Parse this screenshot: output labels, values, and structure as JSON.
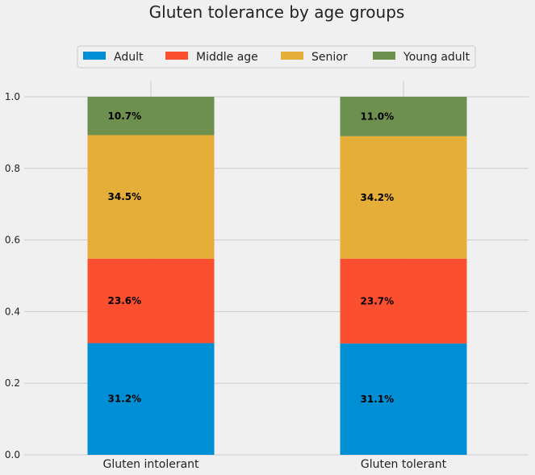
{
  "chart_data": {
    "type": "bar",
    "stacked": true,
    "title": "Gluten tolerance by age groups",
    "xlabel": "",
    "ylabel": "",
    "categories": [
      "Gluten intolerant",
      "Gluten tolerant"
    ],
    "ylim": [
      0,
      1.05
    ],
    "yticks": [
      "0.0",
      "0.2",
      "0.4",
      "0.6",
      "0.8",
      "1.0"
    ],
    "grid": true,
    "legend_position": "top-center",
    "series": [
      {
        "name": "Adult",
        "color": "#008fd5",
        "values": [
          0.312,
          0.311
        ],
        "labels": [
          "31.2%",
          "31.1%"
        ]
      },
      {
        "name": "Middle age",
        "color": "#fc4f30",
        "values": [
          0.236,
          0.237
        ],
        "labels": [
          "23.6%",
          "23.7%"
        ]
      },
      {
        "name": "Senior",
        "color": "#e5ae38",
        "values": [
          0.345,
          0.342
        ],
        "labels": [
          "34.5%",
          "34.2%"
        ]
      },
      {
        "name": "Young adult",
        "color": "#6d904f",
        "values": [
          0.107,
          0.11
        ],
        "labels": [
          "10.7%",
          "11.0%"
        ]
      }
    ]
  }
}
